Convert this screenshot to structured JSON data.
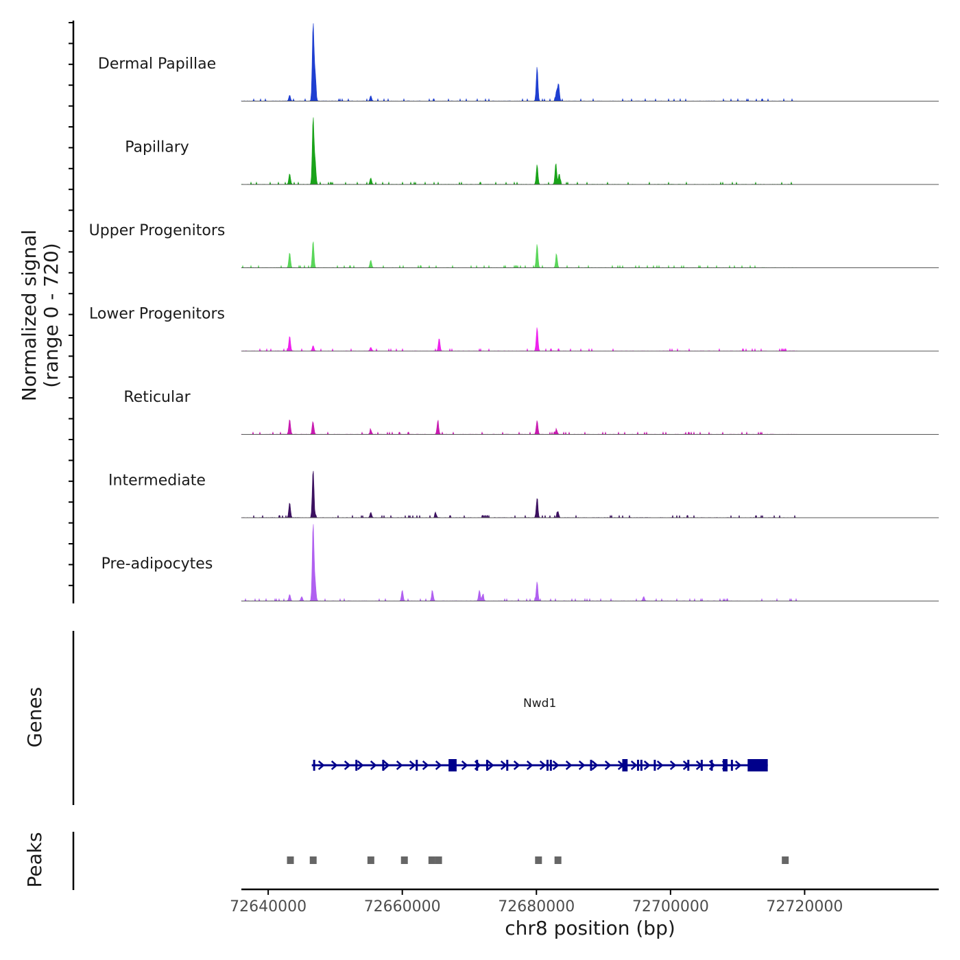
{
  "chart_data": {
    "type": "area",
    "title": "",
    "xlabel": "chr8 position (bp)",
    "ylabel_line1": "Normalized signal",
    "ylabel_line2": "(range 0 - 720)",
    "xlim": [
      72636000,
      72740000
    ],
    "xticks": [
      72640000,
      72660000,
      72680000,
      72700000,
      72720000
    ],
    "xtick_labels": [
      "72640000",
      "72660000",
      "72680000",
      "72700000",
      "72720000"
    ],
    "ylim": [
      0,
      720
    ],
    "series": [
      {
        "name": "Dermal Papillae",
        "color": "#1f3fd1",
        "peaks": [
          [
            72643200,
            55
          ],
          [
            72646700,
            720
          ],
          [
            72647000,
            250
          ],
          [
            72655300,
            50
          ],
          [
            72680100,
            320
          ],
          [
            72683000,
            90
          ],
          [
            72683300,
            160
          ]
        ]
      },
      {
        "name": "Papillary",
        "color": "#1aa31a",
        "peaks": [
          [
            72643200,
            100
          ],
          [
            72646700,
            620
          ],
          [
            72647000,
            210
          ],
          [
            72655300,
            60
          ],
          [
            72680100,
            185
          ],
          [
            72682900,
            200
          ],
          [
            72683400,
            100
          ]
        ]
      },
      {
        "name": "Upper Progenitors",
        "color": "#5ad65a",
        "peaks": [
          [
            72643200,
            140
          ],
          [
            72646700,
            250
          ],
          [
            72655300,
            70
          ],
          [
            72680100,
            220
          ],
          [
            72683000,
            120
          ]
        ]
      },
      {
        "name": "Lower Progenitors",
        "color": "#ee22ee",
        "peaks": [
          [
            72643200,
            140
          ],
          [
            72646700,
            50
          ],
          [
            72655300,
            35
          ],
          [
            72665500,
            120
          ],
          [
            72680100,
            220
          ]
        ]
      },
      {
        "name": "Reticular",
        "color": "#c81bb0",
        "peaks": [
          [
            72643200,
            140
          ],
          [
            72646700,
            110
          ],
          [
            72655300,
            40
          ],
          [
            72665300,
            120
          ],
          [
            72680100,
            130
          ],
          [
            72683000,
            40
          ]
        ]
      },
      {
        "name": "Intermediate",
        "color": "#3c1160",
        "peaks": [
          [
            72643200,
            140
          ],
          [
            72646700,
            450
          ],
          [
            72655300,
            50
          ],
          [
            72665000,
            35
          ],
          [
            72680100,
            180
          ],
          [
            72683200,
            60
          ]
        ]
      },
      {
        "name": "Pre-adipocytes",
        "color": "#b060f0",
        "peaks": [
          [
            72643200,
            60
          ],
          [
            72645000,
            40
          ],
          [
            72646700,
            720
          ],
          [
            72647000,
            170
          ],
          [
            72660000,
            100
          ],
          [
            72664500,
            90
          ],
          [
            72671500,
            100
          ],
          [
            72672000,
            60
          ],
          [
            72680100,
            180
          ],
          [
            72696000,
            40
          ]
        ]
      }
    ],
    "genes": {
      "label": "Genes",
      "name": "Nwd1",
      "color": "#00008b",
      "start": 72646500,
      "end": 72714500,
      "strand": "+",
      "exons": [
        [
          72646700,
          72646900
        ],
        [
          72653000,
          72653100
        ],
        [
          72657000,
          72657100
        ],
        [
          72662000,
          72662200
        ],
        [
          72666900,
          72668100
        ],
        [
          72671000,
          72671100
        ],
        [
          72672500,
          72672650
        ],
        [
          72675500,
          72675600
        ],
        [
          72681500,
          72681700
        ],
        [
          72682000,
          72682100
        ],
        [
          72688000,
          72688100
        ],
        [
          72692800,
          72693600
        ],
        [
          72695000,
          72695100
        ],
        [
          72695500,
          72695600
        ],
        [
          72697500,
          72697600
        ],
        [
          72702500,
          72702600
        ],
        [
          72704500,
          72704600
        ],
        [
          72706000,
          72706100
        ],
        [
          72707800,
          72708500
        ],
        [
          72709000,
          72709100
        ],
        [
          72711500,
          72714500
        ]
      ]
    },
    "peaks_track": {
      "label": "Peaks",
      "color": "#666666",
      "regions": [
        [
          72642800,
          72643700
        ],
        [
          72646200,
          72647100
        ],
        [
          72654800,
          72655700
        ],
        [
          72659800,
          72660700
        ],
        [
          72663900,
          72664800
        ],
        [
          72664900,
          72665800
        ],
        [
          72679800,
          72680700
        ],
        [
          72682700,
          72683600
        ],
        [
          72716600,
          72717500
        ]
      ]
    }
  }
}
